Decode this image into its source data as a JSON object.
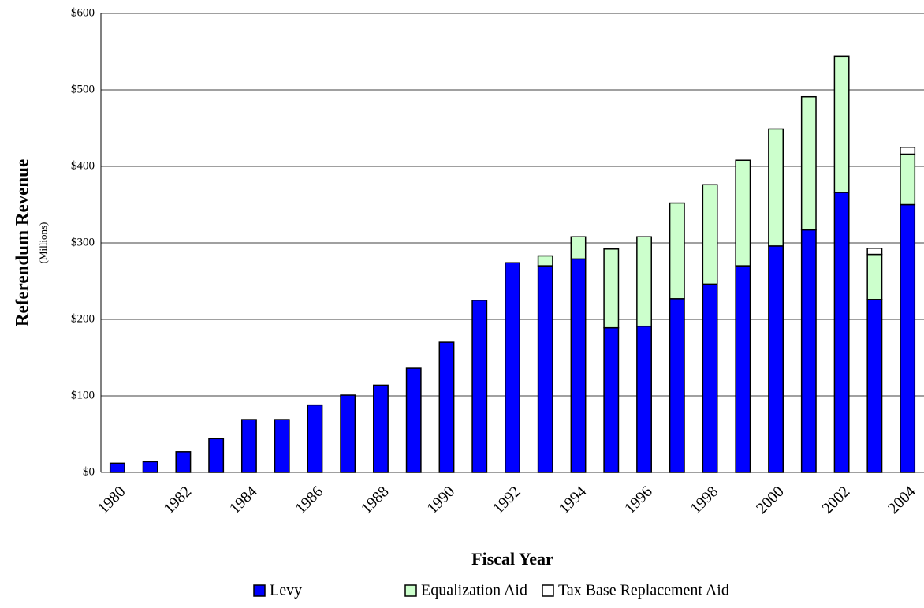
{
  "chart_data": {
    "type": "stacked-bar",
    "y_title": "Referendum Revenue",
    "y_subtitle": "(Millions)",
    "x_title": "Fiscal Year",
    "categories": [
      "1980",
      null,
      "1982",
      null,
      "1984",
      null,
      "1986",
      null,
      "1988",
      null,
      "1990",
      null,
      "1992",
      null,
      "1994",
      null,
      "1996",
      null,
      "1998",
      null,
      "2000",
      null,
      "2002",
      null,
      "2004"
    ],
    "series": [
      {
        "name": "Levy",
        "color": "#0000ff",
        "values": [
          12,
          14,
          27,
          44,
          69,
          69,
          88,
          101,
          114,
          136,
          170,
          225,
          274,
          270,
          279,
          189,
          191,
          227,
          246,
          270,
          296,
          317,
          366,
          226,
          350
        ]
      },
      {
        "name": "Equalization Aid",
        "color": "#ccffcc",
        "values": [
          null,
          null,
          null,
          null,
          null,
          null,
          null,
          null,
          null,
          null,
          null,
          null,
          null,
          13,
          29,
          103,
          117,
          125,
          130,
          138,
          153,
          174,
          178,
          59,
          66
        ]
      },
      {
        "name": "Tax Base Replacement Aid",
        "color": "#ffffff",
        "values": [
          null,
          null,
          null,
          null,
          null,
          null,
          null,
          null,
          null,
          null,
          null,
          null,
          null,
          null,
          null,
          null,
          null,
          null,
          null,
          null,
          null,
          null,
          null,
          8,
          9
        ]
      }
    ],
    "ylim": [
      0,
      600
    ],
    "yticks": [
      {
        "value": 0,
        "label": "$0"
      },
      {
        "value": 100,
        "label": "$100"
      },
      {
        "value": 200,
        "label": "$200"
      },
      {
        "value": 300,
        "label": "$300"
      },
      {
        "value": 400,
        "label": "$400"
      },
      {
        "value": 500,
        "label": "$500"
      },
      {
        "value": 600,
        "label": "$600"
      }
    ],
    "grid": true
  }
}
